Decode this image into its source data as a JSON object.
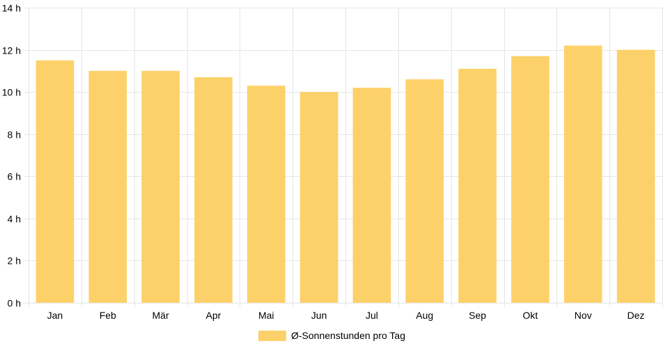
{
  "chart_data": {
    "type": "bar",
    "categories": [
      "Jan",
      "Feb",
      "Mär",
      "Apr",
      "Mai",
      "Jun",
      "Jul",
      "Aug",
      "Sep",
      "Okt",
      "Nov",
      "Dez"
    ],
    "series": [
      {
        "name": "Ø-Sonnenstunden pro Tag",
        "values": [
          11.5,
          11.0,
          11.0,
          10.7,
          10.3,
          10.0,
          10.2,
          10.6,
          11.1,
          11.7,
          12.2,
          12.0
        ]
      }
    ],
    "ylim": [
      0,
      14
    ],
    "yticks": [
      0,
      2,
      4,
      6,
      8,
      10,
      12,
      14
    ],
    "ytick_suffix": " h",
    "grid": true,
    "legend_position": "bottom",
    "colors": {
      "bar": "#fdd16a",
      "grid": "#e5e5e5",
      "axis": "#cccccc"
    }
  }
}
